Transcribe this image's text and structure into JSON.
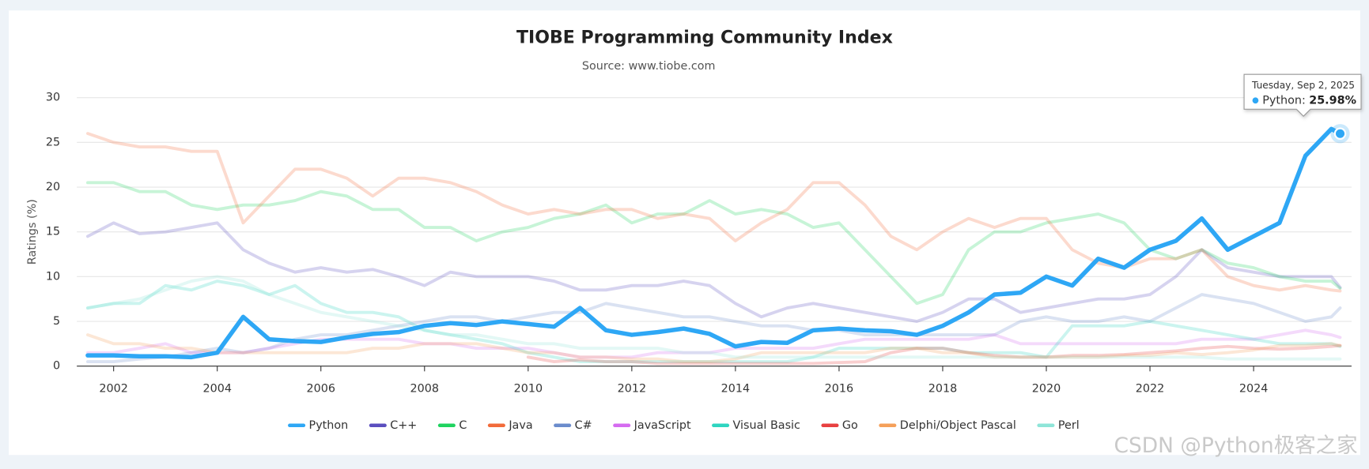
{
  "chart_data": {
    "type": "line",
    "title": "TIOBE Programming Community Index",
    "subtitle": "Source: www.tiobe.com",
    "y_label": "Ratings (%)",
    "watermark": "CSDN @Python极客之家",
    "x": [
      2001.5,
      2002,
      2002.5,
      2003,
      2003.5,
      2004,
      2004.5,
      2005,
      2005.5,
      2006,
      2006.5,
      2007,
      2007.5,
      2008,
      2008.5,
      2009,
      2009.5,
      2010,
      2010.5,
      2011,
      2011.5,
      2012,
      2012.5,
      2013,
      2013.5,
      2014,
      2014.5,
      2015,
      2015.5,
      2016,
      2016.5,
      2017,
      2017.5,
      2018,
      2018.5,
      2019,
      2019.5,
      2020,
      2020.5,
      2021,
      2021.5,
      2022,
      2022.5,
      2023,
      2023.5,
      2024,
      2024.5,
      2025,
      2025.5,
      2025.67
    ],
    "xlim": [
      2001.29,
      2025.89
    ],
    "xticks": [
      2002,
      2004,
      2006,
      2008,
      2010,
      2012,
      2014,
      2016,
      2018,
      2020,
      2022,
      2024
    ],
    "ylim": [
      0,
      30
    ],
    "yticks": [
      0,
      5,
      10,
      15,
      20,
      25,
      30
    ],
    "grid": true,
    "legend": "bottom",
    "highlight": 0,
    "series": [
      {
        "name": "Python",
        "color": "#2ea7f5",
        "values": [
          1.2,
          1.2,
          1.1,
          1.1,
          1.0,
          1.5,
          5.5,
          3.0,
          2.8,
          2.7,
          3.2,
          3.6,
          3.8,
          4.5,
          4.8,
          4.6,
          5.0,
          4.7,
          4.4,
          6.5,
          4.0,
          3.5,
          3.8,
          4.2,
          3.6,
          2.2,
          2.7,
          2.6,
          4.0,
          4.2,
          4.0,
          3.9,
          3.5,
          4.5,
          6.0,
          8.0,
          8.2,
          10.0,
          9.0,
          12.0,
          11.0,
          13.0,
          14.0,
          16.5,
          13.0,
          14.5,
          16.0,
          23.5,
          26.5,
          25.98
        ]
      },
      {
        "name": "C++",
        "color": "#5b4fbf",
        "values": [
          14.5,
          16,
          14.8,
          15,
          15.5,
          16,
          13,
          11.5,
          10.5,
          11,
          10.5,
          10.8,
          10,
          9,
          10.5,
          10,
          10,
          10,
          9.5,
          8.5,
          8.5,
          9,
          9,
          9.5,
          9,
          7,
          5.5,
          6.5,
          7,
          6.5,
          6,
          5.5,
          5,
          6,
          7.5,
          7.5,
          6,
          6.5,
          7,
          7.5,
          7.5,
          8,
          10,
          13,
          11,
          10.5,
          10,
          10,
          10,
          8.8
        ]
      },
      {
        "name": "C",
        "color": "#1fd35f",
        "values": [
          20.5,
          20.5,
          19.5,
          19.5,
          18,
          17.5,
          18,
          18,
          18.5,
          19.5,
          19,
          17.5,
          17.5,
          15.5,
          15.5,
          14,
          15,
          15.5,
          16.5,
          17,
          18,
          16,
          17,
          17,
          18.5,
          17,
          17.5,
          17,
          15.5,
          16,
          13,
          10,
          7,
          8,
          13,
          15,
          15,
          16,
          16.5,
          17,
          16,
          13,
          12,
          13,
          11.5,
          11,
          10,
          9.5,
          9.5,
          8.7
        ]
      },
      {
        "name": "Java",
        "color": "#f26b3a",
        "values": [
          26,
          25,
          24.5,
          24.5,
          24,
          24,
          16,
          19,
          22,
          22,
          21,
          19,
          21,
          21,
          20.5,
          19.5,
          18,
          17,
          17.5,
          17,
          17.5,
          17.5,
          16.5,
          17,
          16.5,
          14,
          16,
          17.5,
          20.5,
          20.5,
          18,
          14.5,
          13,
          15,
          16.5,
          15.5,
          16.5,
          16.5,
          13,
          11.5,
          11,
          12,
          12,
          13,
          10,
          9,
          8.5,
          9,
          8.5,
          8.4
        ]
      },
      {
        "name": "C#",
        "color": "#6b8ccc",
        "values": [
          0.5,
          0.5,
          0.8,
          1,
          1.5,
          2,
          1.5,
          2,
          3,
          3.5,
          3.5,
          4,
          4.5,
          5,
          5.5,
          5.5,
          5,
          5.5,
          6,
          6,
          7,
          6.5,
          6,
          5.5,
          5.5,
          5,
          4.5,
          4.5,
          4,
          4,
          3.5,
          3.5,
          3.5,
          3.5,
          3.5,
          3.5,
          5,
          5.5,
          5,
          5,
          5.5,
          5,
          6.5,
          8,
          7.5,
          7,
          6,
          5,
          5.5,
          6.5
        ]
      },
      {
        "name": "JavaScript",
        "color": "#d56bf0",
        "values": [
          1.5,
          1.5,
          2,
          2.5,
          1.5,
          1.5,
          1.5,
          2,
          2.5,
          3,
          3,
          3,
          3,
          2.5,
          2.5,
          2,
          2,
          2,
          1.5,
          1,
          1,
          1,
          1.5,
          1.5,
          1.5,
          2,
          2,
          2,
          2,
          2.5,
          3,
          3,
          3,
          3,
          3,
          3.5,
          2.5,
          2.5,
          2.5,
          2.5,
          2.5,
          2.5,
          2.5,
          3,
          3,
          3,
          3.5,
          4,
          3.5,
          3.2
        ]
      },
      {
        "name": "Visual Basic",
        "color": "#2ed5c0",
        "values": [
          6.5,
          7,
          7,
          9,
          8.5,
          9.5,
          9,
          8,
          9,
          7,
          6,
          6,
          5.5,
          4,
          3.5,
          3,
          2.5,
          1.5,
          1,
          0.5,
          0.5,
          0.5,
          0.5,
          0.5,
          0.5,
          0.5,
          0.5,
          0.5,
          1,
          2,
          2,
          2,
          2,
          2,
          1.5,
          1.5,
          1.5,
          1,
          4.5,
          4.5,
          4.5,
          5,
          4.5,
          4,
          3.5,
          3,
          2.5,
          2.5,
          2.5,
          2.2
        ]
      },
      {
        "name": "Go",
        "color": "#e84040",
        "values": [
          null,
          null,
          null,
          null,
          null,
          null,
          null,
          null,
          null,
          null,
          null,
          null,
          null,
          null,
          null,
          null,
          null,
          1,
          0.5,
          0.7,
          0.5,
          0.5,
          0.3,
          0.3,
          0.3,
          0.3,
          0.3,
          0.3,
          0.3,
          0.4,
          0.5,
          1.5,
          2,
          2,
          1.5,
          1.2,
          1,
          1,
          1.2,
          1.2,
          1.3,
          1.5,
          1.7,
          2,
          2.2,
          2,
          1.9,
          2,
          2.2,
          2.3
        ]
      },
      {
        "name": "Delphi/Object Pascal",
        "color": "#f5a05a",
        "values": [
          3.5,
          2.5,
          2.5,
          2,
          2,
          1.5,
          1.5,
          1.5,
          1.5,
          1.5,
          1.5,
          2,
          2,
          2.5,
          2.5,
          2.5,
          2,
          1.5,
          1.5,
          1,
          1,
          0.8,
          0.8,
          0.5,
          0.5,
          0.8,
          1.5,
          1.5,
          1.5,
          1.5,
          1.5,
          2,
          2,
          1.5,
          1.5,
          1,
          1,
          1,
          1,
          1,
          1.2,
          1.2,
          1.5,
          1.3,
          1.5,
          1.8,
          2.3,
          2.3,
          2.5,
          2.3
        ]
      },
      {
        "name": "Perl",
        "color": "#8ee5d8",
        "values": [
          6.5,
          7,
          7.5,
          8.5,
          9.5,
          10,
          9.5,
          8,
          7,
          6,
          5.5,
          5,
          4.5,
          4,
          3.5,
          3.5,
          3,
          2.5,
          2.5,
          2,
          2,
          2,
          2,
          1.5,
          1.5,
          1,
          1,
          1,
          1,
          1,
          1,
          1,
          1,
          1,
          1,
          1,
          1,
          1,
          1,
          1,
          1,
          1,
          1,
          1,
          0.8,
          0.8,
          0.8,
          0.8,
          0.8,
          0.8
        ]
      }
    ],
    "tooltip": {
      "title": "Tuesday, Sep 2, 2025",
      "label": "Python:",
      "value": 25.98,
      "value_label": "25.98%"
    }
  }
}
